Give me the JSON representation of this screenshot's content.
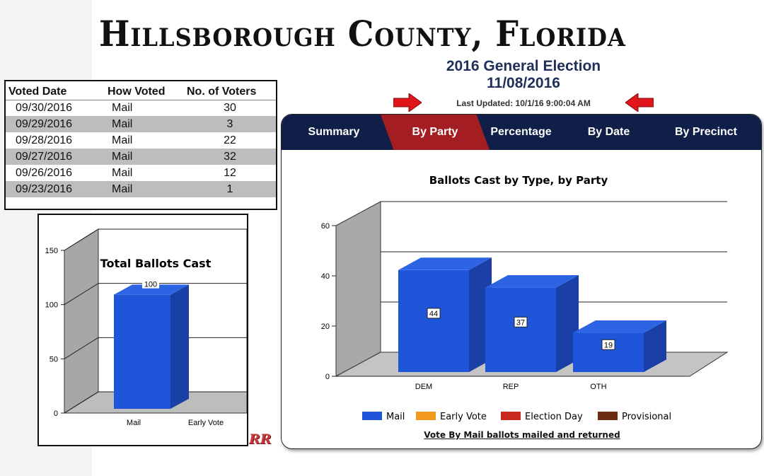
{
  "header": {
    "county_title": "Hillsborough County, Florida",
    "election_name": "2016 General Election",
    "election_date": "11/08/2016",
    "last_updated": "Last Updated: 10/1/16 9:00:04 AM"
  },
  "vote_table": {
    "columns": [
      "Voted Date",
      "How Voted",
      "No. of Voters"
    ],
    "rows": [
      [
        "09/30/2016",
        "Mail",
        "30"
      ],
      [
        "09/29/2016",
        "Mail",
        "3"
      ],
      [
        "09/28/2016",
        "Mail",
        "22"
      ],
      [
        "09/27/2016",
        "Mail",
        "32"
      ],
      [
        "09/26/2016",
        "Mail",
        "12"
      ],
      [
        "09/23/2016",
        "Mail",
        "1"
      ]
    ]
  },
  "tabs": [
    {
      "label": "Summary",
      "active": false
    },
    {
      "label": "By Party",
      "active": true
    },
    {
      "label": "Percentage",
      "active": false
    },
    {
      "label": "By Date",
      "active": false
    },
    {
      "label": "By Precinct",
      "active": false
    }
  ],
  "footnote": "Vote By Mail ballots mailed and returned",
  "signature": "RR",
  "colors": {
    "tab_bar": "#0f1f48",
    "tab_active": "#a31d22",
    "bar_front": "#1f55d9",
    "arrow": "#e0161a"
  },
  "chart_data": [
    {
      "type": "bar",
      "title": "Total Ballots Cast",
      "categories": [
        "Mail",
        "Early Vote"
      ],
      "values": [
        100,
        0
      ],
      "data_labels": [
        "100",
        ""
      ],
      "ylim": [
        0,
        150
      ],
      "yticks": [
        0,
        50,
        100,
        150
      ],
      "grid": true,
      "xlabel": "",
      "ylabel": ""
    },
    {
      "type": "bar",
      "title": "Ballots Cast by Type, by Party",
      "categories": [
        "DEM",
        "REP",
        "OTH"
      ],
      "series": [
        {
          "name": "Mail",
          "values": [
            44,
            37,
            19
          ],
          "color": "#1f55d9"
        },
        {
          "name": "Early Vote",
          "values": [
            0,
            0,
            0
          ],
          "color": "#f39a1e"
        },
        {
          "name": "Election Day",
          "values": [
            0,
            0,
            0
          ],
          "color": "#c8281e"
        },
        {
          "name": "Provisional",
          "values": [
            0,
            0,
            0
          ],
          "color": "#6b2a12"
        }
      ],
      "ylim": [
        0,
        60
      ],
      "yticks": [
        0,
        20,
        40,
        60
      ],
      "grid": true,
      "legend": "bottom",
      "xlabel": "",
      "ylabel": ""
    }
  ]
}
